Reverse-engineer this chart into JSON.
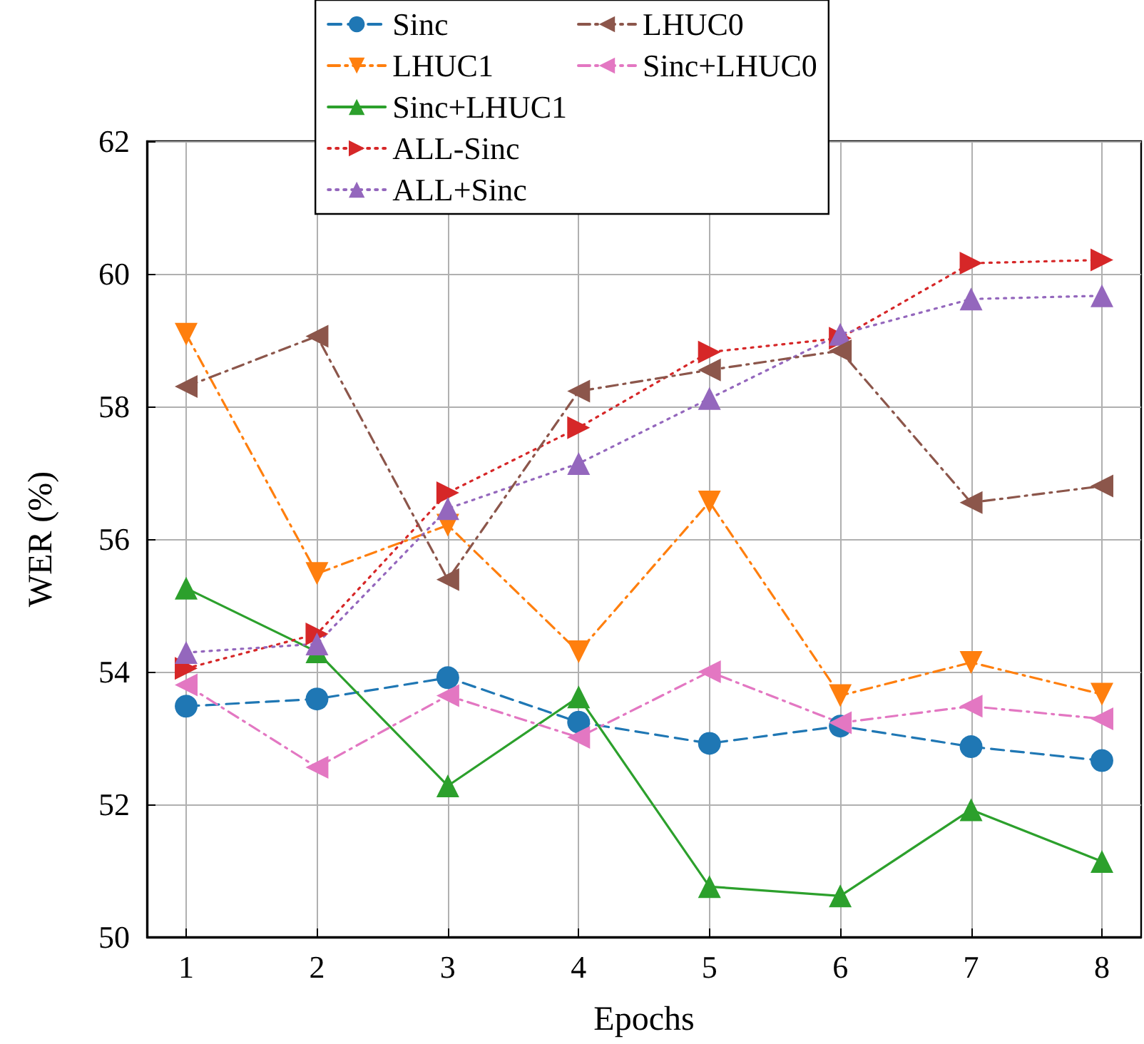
{
  "chart_data": {
    "type": "line",
    "xlabel": "Epochs",
    "ylabel": "WER (%)",
    "x": [
      1,
      2,
      3,
      4,
      5,
      6,
      7,
      8
    ],
    "xlim": [
      0.7,
      8.3
    ],
    "xticks": [
      1,
      2,
      3,
      4,
      5,
      6,
      7,
      8
    ],
    "ylim": [
      50,
      62
    ],
    "yticks": [
      50,
      52,
      54,
      56,
      58,
      60,
      62
    ],
    "grid": true,
    "legend": "top",
    "series": [
      {
        "name": "Sinc",
        "color": "#1f77b4",
        "marker": "circle",
        "line_style": "dashed",
        "values": [
          53.48,
          53.59,
          53.91,
          53.24,
          52.92,
          53.18,
          52.87,
          52.66
        ]
      },
      {
        "name": "LHUC1",
        "color": "#ff7f0e",
        "marker": "triangle-down",
        "line_style": "dashdot",
        "values": [
          59.09,
          55.48,
          56.21,
          54.3,
          56.56,
          53.64,
          54.14,
          53.66
        ]
      },
      {
        "name": "Sinc+LHUC1",
        "color": "#2ca02c",
        "marker": "triangle",
        "line_style": "solid",
        "values": [
          55.26,
          54.3,
          52.28,
          53.62,
          50.76,
          50.62,
          51.92,
          51.14
        ]
      },
      {
        "name": "ALL-Sinc",
        "color": "#d62728",
        "marker": "triangle-right",
        "line_style": "dotted",
        "values": [
          54.05,
          54.57,
          56.7,
          57.68,
          58.82,
          59.03,
          60.16,
          60.21
        ]
      },
      {
        "name": "ALL+Sinc",
        "color": "#9467bd",
        "marker": "triangle",
        "line_style": "dotted",
        "values": [
          54.29,
          54.42,
          56.46,
          57.14,
          58.12,
          59.09,
          59.62,
          59.67
        ]
      },
      {
        "name": "LHUC0",
        "color": "#8c564b",
        "marker": "triangle-left",
        "line_style": "dashdot",
        "values": [
          58.3,
          59.06,
          55.39,
          58.23,
          58.55,
          58.84,
          56.55,
          56.8
        ]
      },
      {
        "name": "Sinc+LHUC0",
        "color": "#e377c2",
        "marker": "triangle-left",
        "line_style": "dashdot",
        "values": [
          53.8,
          52.56,
          53.64,
          53.01,
          54.0,
          53.23,
          53.48,
          53.29
        ]
      }
    ]
  }
}
